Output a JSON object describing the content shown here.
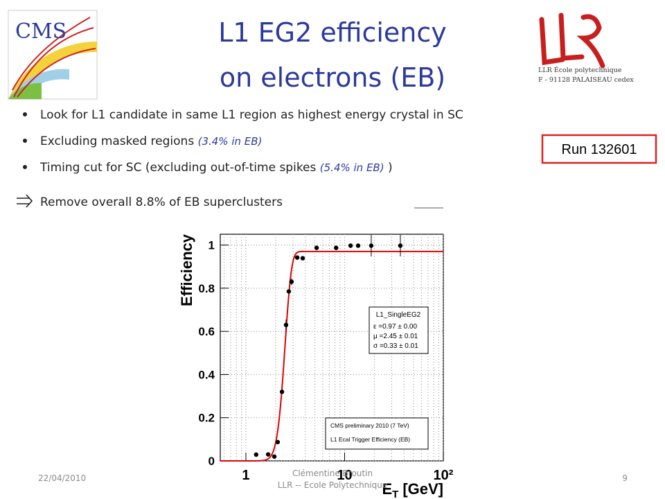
{
  "header": {
    "title": [
      "L1 EG2 efficiency",
      "on electrons (EB)"
    ]
  },
  "logos": {
    "cms": "CMS",
    "llr": [
      "LLR École polytechnique",
      "F - 91128 PALAISEAU cedex"
    ]
  },
  "bullets": [
    [
      "Look for L1 candidate in same L1 region as highest energy crystal in SC"
    ],
    [
      "Excluding masked regions ",
      "(3.4% in EB)"
    ],
    [
      "Timing cut for SC (excluding out-of-time spikes ",
      "(5.4% in EB)",
      " )"
    ]
  ],
  "conclusion": "Remove overall 8.8% of EB superclusters",
  "run_box": "Run 132601",
  "footer": {
    "date": "22/04/2010",
    "author": [
      "Clémentine Broutin",
      "LLR -- Ecole Polytechnique"
    ],
    "page": "9"
  },
  "chart_data": {
    "type": "scatter",
    "y_label": "Efficiency",
    "x_label": {
      "symbol": "E",
      "subscript": "T",
      "unit": "[GeV]"
    },
    "xscale": "log",
    "xlim": [
      0.55,
      100
    ],
    "ylim": [
      0,
      1.05
    ],
    "xticks": [
      1,
      10,
      {
        "value": 100,
        "label": "10²"
      }
    ],
    "xminorticks": [
      0.6,
      0.7,
      0.8,
      0.9,
      2,
      3,
      4,
      5,
      6,
      7,
      8,
      9,
      20,
      30,
      40,
      50,
      60,
      70,
      80,
      90
    ],
    "yticks": [
      0,
      0.2,
      0.4,
      0.6,
      0.8,
      1
    ],
    "grid": true,
    "x": [
      1.27,
      1.68,
      1.94,
      2.1,
      2.32,
      2.55,
      2.72,
      2.9,
      3.31,
      3.76,
      5.2,
      8.2,
      11.5,
      13.7,
      18.6,
      36.7
    ],
    "series": [
      {
        "color": "#000000",
        "values": [
          0.029,
          0.03,
          0.02,
          0.087,
          0.32,
          0.63,
          0.785,
          0.83,
          0.942,
          0.939,
          0.987,
          0.987,
          0.997,
          0.997,
          0.997,
          0.997
        ],
        "errors": [
          0.01,
          0.01,
          0.005,
          0.01,
          0.01,
          0.025,
          0.01,
          0.015,
          0.005,
          0.005,
          0.005,
          0.01,
          0.01,
          0.01,
          0.05,
          0.05
        ]
      }
    ],
    "fit": {
      "name": "L1_SingleEG2",
      "color": "#e00000",
      "values": [
        0.97,
        2.45,
        0.33
      ],
      "value_labels": [
        "ε =0.97 ± 0.00",
        "μ =2.45 ± 0.01",
        "σ =0.33 ± 0.01"
      ]
    },
    "annotation": [
      "CMS preliminary 2010 (7 TeV)",
      "L1 Ecal Trigger Efficiency (EB)"
    ]
  }
}
